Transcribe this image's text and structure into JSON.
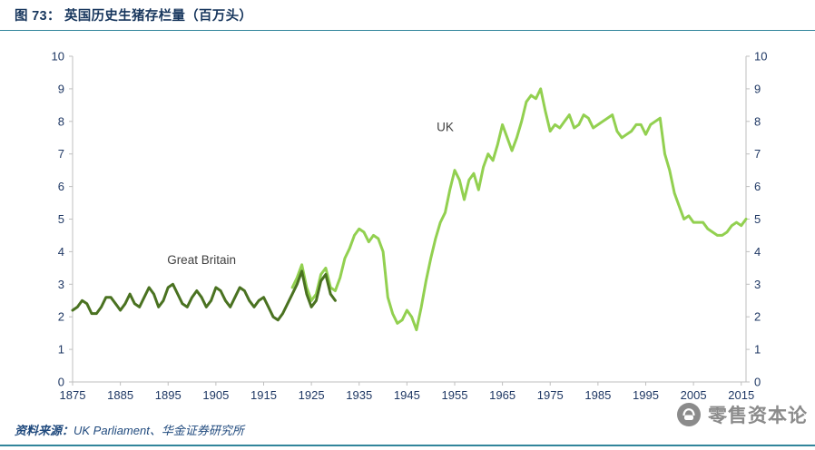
{
  "header": {
    "title": "图 73： 英国历史生猪存栏量（百万头）"
  },
  "footer": {
    "source_label": "资料来源：",
    "source_text": "UK Parliament、华金证券研究所"
  },
  "watermark": {
    "text": "零售资本论",
    "icon": "fist-circle-logo"
  },
  "colors": {
    "accent_teal": "#31859b",
    "title_navy": "#17365d",
    "source_blue": "#1f497d",
    "axis_gray": "#bfbfbf",
    "tick_text": "#1f3864",
    "annotation_text": "#3f3f3f",
    "gb_green": "#4a7221",
    "uk_green": "#92d050",
    "watermark_gray": "#8b8b8b"
  },
  "chart_data": {
    "type": "line",
    "title": "英国历史生猪存栏量（百万头）",
    "xlabel": "",
    "ylabel": "",
    "xlim": [
      1875,
      2016
    ],
    "ylim": [
      0,
      10
    ],
    "grid": false,
    "legend_position": "inline-annotations",
    "x_ticks": [
      1875,
      1885,
      1895,
      1905,
      1915,
      1925,
      1935,
      1945,
      1955,
      1965,
      1975,
      1985,
      1995,
      2005,
      2015
    ],
    "y_ticks": [
      0,
      1,
      2,
      3,
      4,
      5,
      6,
      7,
      8,
      9,
      10
    ],
    "y_axis_sides": [
      "left",
      "right"
    ],
    "annotations": [
      {
        "text": "Great Britain",
        "year": 1902,
        "value": 3.62
      },
      {
        "text": "UK",
        "year": 1953,
        "value": 7.7
      }
    ],
    "series": [
      {
        "name": "Great Britain",
        "color": "#4a7221",
        "width": 3,
        "z": 2,
        "start_year": 1875,
        "values": [
          2.2,
          2.3,
          2.5,
          2.4,
          2.1,
          2.1,
          2.3,
          2.6,
          2.6,
          2.4,
          2.2,
          2.4,
          2.7,
          2.4,
          2.3,
          2.6,
          2.9,
          2.7,
          2.3,
          2.5,
          2.9,
          3.0,
          2.7,
          2.4,
          2.3,
          2.6,
          2.8,
          2.6,
          2.3,
          2.5,
          2.9,
          2.8,
          2.5,
          2.3,
          2.6,
          2.9,
          2.8,
          2.5,
          2.3,
          2.5,
          2.6,
          2.3,
          2.0,
          1.9,
          2.1,
          2.4,
          2.7,
          3.0,
          3.4,
          2.7,
          2.3,
          2.5,
          3.1,
          3.3,
          2.7,
          2.5
        ]
      },
      {
        "name": "UK",
        "color": "#92d050",
        "width": 3,
        "z": 1,
        "start_year": 1921,
        "values": [
          2.9,
          3.2,
          3.6,
          2.9,
          2.5,
          2.7,
          3.3,
          3.5,
          2.9,
          2.8,
          3.2,
          3.8,
          4.1,
          4.5,
          4.7,
          4.6,
          4.3,
          4.5,
          4.4,
          4.0,
          2.6,
          2.1,
          1.8,
          1.9,
          2.2,
          2.0,
          1.6,
          2.3,
          3.1,
          3.8,
          4.4,
          4.9,
          5.2,
          5.9,
          6.5,
          6.2,
          5.6,
          6.2,
          6.4,
          5.9,
          6.6,
          7.0,
          6.8,
          7.3,
          7.9,
          7.5,
          7.1,
          7.5,
          8.0,
          8.6,
          8.8,
          8.7,
          9.0,
          8.3,
          7.7,
          7.9,
          7.8,
          8.0,
          8.2,
          7.8,
          7.9,
          8.2,
          8.1,
          7.8,
          7.9,
          8.0,
          8.1,
          8.2,
          7.7,
          7.5,
          7.6,
          7.7,
          7.9,
          7.9,
          7.6,
          7.9,
          8.0,
          8.1,
          7.0,
          6.5,
          5.8,
          5.4,
          5.0,
          5.1,
          4.9,
          4.9,
          4.9,
          4.7,
          4.6,
          4.5,
          4.5,
          4.6,
          4.8,
          4.9,
          4.8,
          5.0
        ]
      }
    ]
  }
}
